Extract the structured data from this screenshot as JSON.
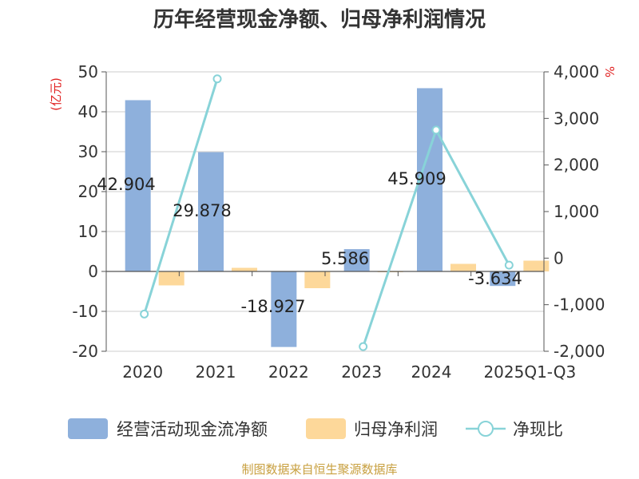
{
  "chart_data": {
    "type": "bar",
    "title": "历年经营现金净额、归母净利润情况",
    "categories": [
      "2020",
      "2021",
      "2022",
      "2023",
      "2024",
      "2025Q1-Q3"
    ],
    "series": [
      {
        "name": "经营活动现金流净额",
        "kind": "bar",
        "axis": "left",
        "color": "#8eb0dc",
        "values": [
          42.904,
          29.878,
          -18.927,
          5.586,
          45.909,
          -3.634
        ]
      },
      {
        "name": "归母净利润",
        "kind": "bar",
        "axis": "left",
        "color": "#fdd89a",
        "values": [
          -3.5,
          0.9,
          -4.2,
          -0.1,
          1.9,
          2.7
        ]
      },
      {
        "name": "净现比",
        "kind": "line",
        "axis": "right",
        "color": "#88d3d8",
        "values": [
          -1200,
          3850,
          null,
          -1900,
          2750,
          -150
        ]
      }
    ],
    "data_labels": [
      "42.904",
      "29.878",
      "-18.927",
      "5.586",
      "45.909",
      "-3.634"
    ],
    "y_left": {
      "label": "(亿元)",
      "min": -20,
      "max": 50,
      "ticks": [
        "-20",
        "-10",
        "0",
        "10",
        "20",
        "30",
        "40",
        "50"
      ]
    },
    "y_right": {
      "label": "%",
      "min": -2000,
      "max": 4000,
      "ticks": [
        "-2,000",
        "-1,000",
        "0",
        "1,000",
        "2,000",
        "3,000",
        "4,000"
      ]
    },
    "legend": [
      "经营活动现金流净额",
      "归母净利润",
      "净现比"
    ],
    "legend_position": "bottom",
    "source": "制图数据来自恒生聚源数据库",
    "unit_color": "#e02020",
    "source_color": "#c8a040"
  }
}
